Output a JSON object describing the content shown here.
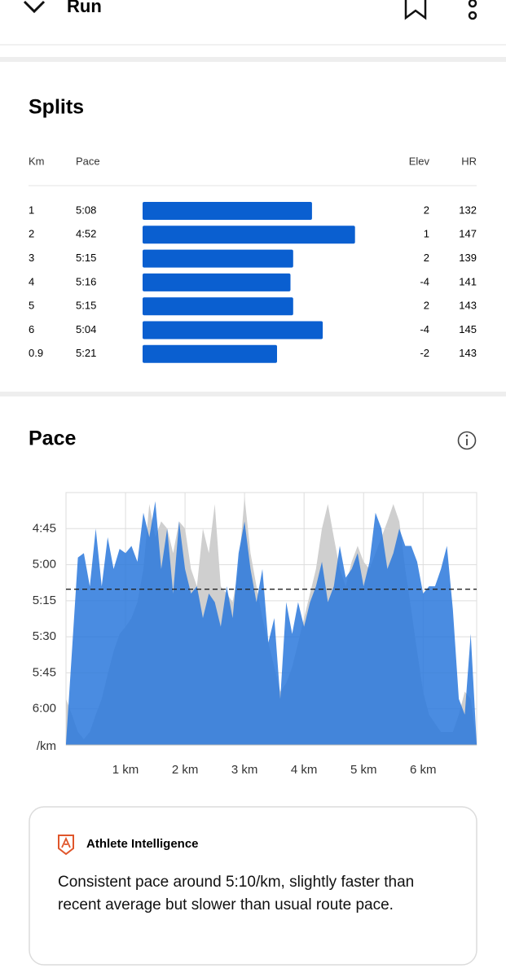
{
  "header": {
    "title": "Run"
  },
  "splits": {
    "title": "Splits",
    "columns": [
      "Km",
      "Pace",
      "Elev",
      "HR"
    ],
    "rows": [
      [
        1,
        "5:08",
        2,
        132
      ],
      [
        2,
        "4:52",
        1,
        147
      ],
      [
        3,
        "5:15",
        2,
        139
      ],
      [
        4,
        "5:16",
        -4,
        141
      ],
      [
        5,
        "5:15",
        2,
        143
      ],
      [
        6,
        "5:04",
        -4,
        145
      ],
      [
        0.9,
        "5:21",
        -2,
        143
      ]
    ],
    "bar_color": "#0a5fd0"
  },
  "chart_data": {
    "type": "area",
    "title": "Pace",
    "y_label": "/km",
    "x": [
      0,
      0.1,
      0.2,
      0.3,
      0.4,
      0.5,
      0.6,
      0.7,
      0.8,
      0.9,
      1,
      1.1,
      1.2,
      1.3,
      1.4,
      1.5,
      1.6,
      1.7,
      1.8,
      1.9,
      2,
      2.1,
      2.2,
      2.3,
      2.4,
      2.5,
      2.6,
      2.7,
      2.8,
      2.9,
      3,
      3.1,
      3.2,
      3.3,
      3.4,
      3.5,
      3.6,
      3.7,
      3.8,
      3.9,
      4,
      4.1,
      4.2,
      4.3,
      4.4,
      4.5,
      4.6,
      4.7,
      4.8,
      4.9,
      5,
      5.1,
      5.2,
      5.3,
      5.4,
      5.5,
      5.6,
      5.7,
      5.8,
      5.9,
      6,
      6.1,
      6.2,
      6.3,
      6.4,
      6.5,
      6.6,
      6.7,
      6.8,
      6.9
    ],
    "series": [
      {
        "color": "#cfcfcf",
        "values": [
          5.93,
          6.04,
          6.16,
          6.21,
          6.16,
          6.04,
          5.93,
          5.76,
          5.6,
          5.48,
          5.43,
          5.37,
          5.26,
          5.03,
          4.58,
          4.81,
          4.7,
          4.75,
          4.92,
          4.7,
          4.75,
          5.03,
          5.15,
          4.75,
          4.92,
          4.58,
          5.15,
          5.2,
          5.26,
          5.03,
          4.53,
          4.92,
          5.15,
          5.37,
          5.54,
          5.71,
          5.88,
          5.82,
          5.71,
          5.54,
          5.37,
          5.2,
          5.03,
          4.75,
          4.58,
          4.81,
          5.03,
          5.15,
          4.98,
          4.87,
          4.98,
          5.03,
          4.92,
          4.81,
          4.7,
          4.58,
          4.7,
          5.03,
          5.31,
          5.6,
          5.88,
          6.04,
          6.1,
          6.16,
          6.16,
          6.16,
          6.04,
          5.88,
          5.93,
          6.24
        ]
      },
      {
        "color": "#2a78dc",
        "values": [
          6.24,
          5.6,
          4.95,
          4.92,
          5.15,
          4.75,
          5.15,
          4.81,
          5.03,
          4.89,
          4.92,
          4.87,
          4.98,
          4.64,
          4.81,
          4.56,
          5.03,
          4.75,
          5.2,
          4.7,
          5.03,
          5.2,
          5.15,
          5.37,
          5.2,
          5.26,
          5.43,
          5.15,
          5.37,
          4.92,
          4.7,
          5.03,
          5.26,
          5.03,
          5.54,
          5.37,
          5.93,
          5.26,
          5.48,
          5.26,
          5.43,
          5.26,
          5.15,
          4.98,
          5.26,
          5.15,
          4.87,
          5.09,
          5.03,
          4.92,
          5.15,
          4.98,
          4.64,
          4.75,
          5.03,
          4.92,
          4.75,
          4.87,
          4.87,
          4.98,
          5.2,
          5.15,
          5.15,
          5.03,
          4.87,
          5.31,
          5.93,
          6.04,
          5.48,
          6.24
        ]
      }
    ],
    "xlim": [
      0,
      6.9
    ],
    "xticks": [
      {
        "value": 1,
        "label": "1 km"
      },
      {
        "value": 2,
        "label": "2 km"
      },
      {
        "value": 3,
        "label": "3 km"
      },
      {
        "value": 4,
        "label": "4 km"
      },
      {
        "value": 5,
        "label": "5 km"
      },
      {
        "value": 6,
        "label": "6 km"
      }
    ],
    "ylim": [
      6.25,
      4.5
    ],
    "yticks": [
      {
        "value": 4.75,
        "label": "4:45"
      },
      {
        "value": 5,
        "label": "5:00"
      },
      {
        "value": 5.25,
        "label": "5:15"
      },
      {
        "value": 5.5,
        "label": "5:30"
      },
      {
        "value": 5.75,
        "label": "5:45"
      },
      {
        "value": 6,
        "label": "6:00"
      }
    ],
    "reference_line": 5.17,
    "grid": true
  },
  "insight": {
    "title": "Athlete Intelligence",
    "text": "Consistent pace around 5:10/km, slightly faster than recent average but slower than usual route pace."
  }
}
